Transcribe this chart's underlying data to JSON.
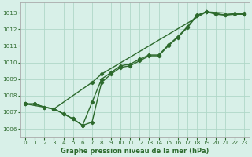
{
  "title": "Graphe pression niveau de la mer (hPa)",
  "bg_color": "#d8f0e8",
  "grid_color": "#b0d8c8",
  "line_color": "#2d6a2d",
  "marker": "D",
  "markersize": 2.2,
  "linewidth": 1.0,
  "xlim": [
    -0.5,
    23.5
  ],
  "ylim": [
    1005.5,
    1013.6
  ],
  "xticks": [
    0,
    1,
    2,
    3,
    4,
    5,
    6,
    7,
    8,
    9,
    10,
    11,
    12,
    13,
    14,
    15,
    16,
    17,
    18,
    19,
    20,
    21,
    22,
    23
  ],
  "yticks": [
    1006,
    1007,
    1008,
    1009,
    1010,
    1011,
    1012,
    1013
  ],
  "series1_x": [
    0,
    1,
    2,
    3,
    4,
    5,
    6,
    7,
    8,
    9,
    10,
    11,
    12,
    13,
    14,
    15,
    16,
    17,
    18,
    19,
    20,
    21,
    22,
    23
  ],
  "series1_y": [
    1007.5,
    1007.5,
    1007.3,
    1007.2,
    1006.9,
    1006.6,
    1006.2,
    1006.4,
    1008.8,
    1009.3,
    1009.7,
    1009.8,
    1010.1,
    1010.4,
    1010.4,
    1011.0,
    1011.5,
    1012.1,
    1012.8,
    1013.05,
    1012.9,
    1012.85,
    1012.9,
    1012.9
  ],
  "series2_x": [
    0,
    1,
    2,
    3,
    4,
    5,
    6,
    7,
    8,
    9,
    10,
    11,
    12,
    13,
    14,
    15,
    16,
    17,
    18,
    19,
    20,
    21,
    22,
    23
  ],
  "series2_y": [
    1007.5,
    1007.5,
    1007.3,
    1007.2,
    1006.9,
    1006.6,
    1006.2,
    1007.6,
    1009.0,
    1009.4,
    1009.8,
    1009.9,
    1010.2,
    1010.45,
    1010.45,
    1011.05,
    1011.55,
    1012.15,
    1012.85,
    1013.05,
    1012.95,
    1012.85,
    1012.95,
    1012.95
  ],
  "series3_x": [
    0,
    3,
    7,
    8,
    19,
    23
  ],
  "series3_y": [
    1007.5,
    1007.2,
    1008.8,
    1009.3,
    1013.05,
    1012.9
  ],
  "spine_color": "#aaaaaa",
  "title_fontsize": 6.0,
  "tick_fontsize": 5.2,
  "tick_color": "#2d6a2d"
}
